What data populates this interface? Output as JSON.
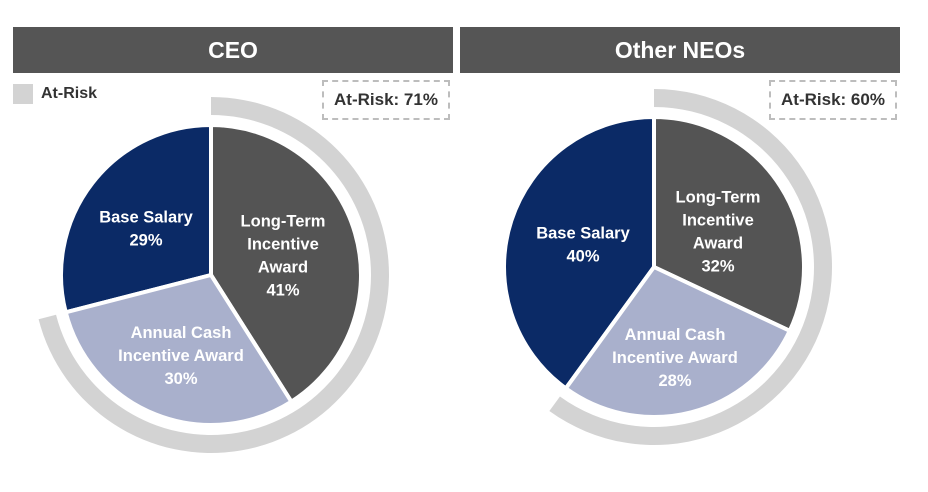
{
  "colors": {
    "header_bg": "#555555",
    "base_salary": "#0b2a66",
    "long_term": "#545454",
    "annual_cash": "#a9b0cc",
    "at_risk_ring": "#d3d3d3"
  },
  "legend": {
    "label": "At-Risk",
    "icon": "square-swatch-icon"
  },
  "chart_data": [
    {
      "type": "pie",
      "title": "CEO",
      "at_risk_label": "At-Risk: 71%",
      "at_risk_percent": 71,
      "slices": [
        {
          "name": "Base Salary",
          "value": 29,
          "label_lines": [
            "Base Salary",
            "29%"
          ]
        },
        {
          "name": "Long-Term Incentive Award",
          "value": 41,
          "label_lines": [
            "Long-Term",
            "Incentive",
            "Award",
            "41%"
          ]
        },
        {
          "name": "Annual Cash Incentive Award",
          "value": 30,
          "label_lines": [
            "Annual Cash",
            "Incentive Award",
            "30%"
          ]
        }
      ]
    },
    {
      "type": "pie",
      "title": "Other NEOs",
      "at_risk_label": "At-Risk: 60%",
      "at_risk_percent": 60,
      "slices": [
        {
          "name": "Base Salary",
          "value": 40,
          "label_lines": [
            "Base Salary",
            "40%"
          ]
        },
        {
          "name": "Long-Term Incentive Award",
          "value": 32,
          "label_lines": [
            "Long-Term",
            "Incentive",
            "Award",
            "32%"
          ]
        },
        {
          "name": "Annual Cash Incentive Award",
          "value": 28,
          "label_lines": [
            "Annual Cash",
            "Incentive Award",
            "28%"
          ]
        }
      ]
    }
  ]
}
